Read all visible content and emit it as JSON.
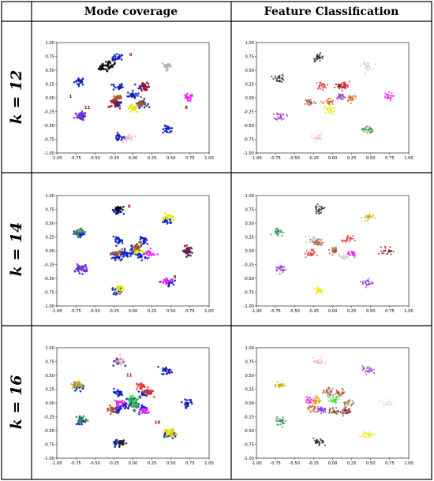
{
  "table": {
    "col_headers": [
      "Mode coverage",
      "Feature Classification"
    ],
    "rows": [
      {
        "label": "k = 12",
        "k": 12
      },
      {
        "label": "k = 14",
        "k": 14
      },
      {
        "label": "k = 16",
        "k": 16
      }
    ]
  },
  "chart_data": [
    {
      "type": "scatter",
      "title": "k = 12 — Mode coverage",
      "xlim": [
        -1.0,
        1.0
      ],
      "ylim": [
        -1.0,
        1.0
      ],
      "xticks": [
        "-1.00",
        "-0.75",
        "-0.50",
        "-0.25",
        "0.00",
        "0.25",
        "0.50",
        "0.75",
        "1.00"
      ],
      "yticks": [
        "1.00",
        "0.75",
        "0.50",
        "0.25",
        "0.00",
        "-0.25",
        "-0.50",
        "-0.75",
        "-1.00"
      ],
      "modes": [
        [
          -0.7,
          0.3
        ],
        [
          -0.2,
          0.72
        ],
        [
          0.45,
          0.58
        ],
        [
          -0.68,
          -0.33
        ],
        [
          -0.18,
          -0.72
        ],
        [
          0.46,
          -0.58
        ],
        [
          0.72,
          0.0
        ],
        [
          -0.2,
          0.2
        ],
        [
          -0.2,
          -0.1
        ],
        [
          0.15,
          0.2
        ],
        [
          0.12,
          -0.1
        ],
        [
          0.0,
          -0.2
        ],
        [
          0.0,
          0.05
        ],
        [
          -0.1,
          0.0
        ]
      ],
      "series": [
        {
          "color": "#0a1cc4",
          "points": [
            [
              -0.7,
              0.3
            ],
            [
              -0.2,
              0.72
            ],
            [
              -0.68,
              -0.33
            ],
            [
              -0.18,
              -0.72
            ],
            [
              0.46,
              -0.58
            ],
            [
              -0.2,
              0.2
            ],
            [
              -0.2,
              -0.1
            ],
            [
              0.15,
              0.2
            ],
            [
              0.12,
              -0.1
            ],
            [
              0.0,
              0.05
            ]
          ]
        },
        {
          "color": "#000000",
          "points": [
            [
              -0.4,
              0.55
            ],
            [
              -0.3,
              0.6
            ]
          ]
        },
        {
          "color": "#b0b0b0",
          "points": [
            [
              0.45,
              0.58
            ]
          ]
        },
        {
          "color": "#a01010",
          "points": [
            [
              0.15,
              0.2
            ],
            [
              -0.25,
              -0.1
            ]
          ]
        },
        {
          "color": "#a0522d",
          "points": [
            [
              -0.2,
              0.0
            ],
            [
              0.12,
              -0.1
            ]
          ]
        },
        {
          "color": "#f020f0",
          "points": [
            [
              0.72,
              0.0
            ]
          ]
        },
        {
          "color": "#e6e600",
          "points": [
            [
              0.0,
              -0.2
            ]
          ]
        },
        {
          "color": "#8a2be2",
          "points": [
            [
              -0.68,
              -0.33
            ]
          ]
        },
        {
          "color": "#ffb6c1",
          "points": [
            [
              -0.05,
              -0.72
            ]
          ]
        }
      ],
      "labels": [
        {
          "text": "1",
          "x": -0.82,
          "y": 0.0
        },
        {
          "text": "11",
          "x": -0.6,
          "y": -0.2
        },
        {
          "text": "0",
          "x": -0.03,
          "y": 0.76
        },
        {
          "text": "8",
          "x": 0.7,
          "y": -0.2
        }
      ]
    },
    {
      "type": "scatter",
      "title": "k = 12 — Feature Classification",
      "xlim": [
        -1.0,
        1.0
      ],
      "ylim": [
        -1.0,
        1.0
      ],
      "xticks": [
        "-1.00",
        "-0.75",
        "-0.50",
        "-0.25",
        "0.00",
        "0.25",
        "0.50",
        "0.75",
        "1.00"
      ],
      "yticks": [
        "1.00",
        "0.75",
        "0.50",
        "0.25",
        "0.00",
        "-0.25",
        "-0.50",
        "-0.75",
        "-1.00"
      ],
      "series": [
        {
          "color": "#202020",
          "points": [
            [
              -0.7,
              0.35
            ],
            [
              -0.18,
              0.73
            ]
          ]
        },
        {
          "color": "#c8c8c8",
          "points": [
            [
              0.45,
              0.58
            ]
          ]
        },
        {
          "color": "#e03030",
          "points": [
            [
              -0.15,
              0.22
            ],
            [
              0.15,
              0.22
            ]
          ]
        },
        {
          "color": "#8b1a1a",
          "points": [
            [
              0.1,
              0.2
            ]
          ]
        },
        {
          "color": "#a0522d",
          "points": [
            [
              -0.3,
              -0.08
            ]
          ]
        },
        {
          "color": "#d2691e",
          "points": [
            [
              0.25,
              0.0
            ],
            [
              -0.05,
              -0.08
            ]
          ]
        },
        {
          "color": "#9932cc",
          "points": [
            [
              -0.68,
              -0.33
            ],
            [
              0.1,
              0.02
            ]
          ]
        },
        {
          "color": "#f020f0",
          "points": [
            [
              0.72,
              0.02
            ]
          ]
        },
        {
          "color": "#e8e800",
          "points": [
            [
              -0.05,
              -0.22
            ]
          ]
        },
        {
          "color": "#228b22",
          "points": [
            [
              0.46,
              -0.58
            ]
          ]
        },
        {
          "color": "#ffc0cb",
          "points": [
            [
              -0.2,
              -0.72
            ]
          ]
        }
      ],
      "labels": []
    },
    {
      "type": "scatter",
      "title": "k = 14 — Mode coverage",
      "xlim": [
        -1.0,
        1.0
      ],
      "ylim": [
        -1.0,
        1.0
      ],
      "xticks": [
        "-1.00",
        "-0.75",
        "-0.50",
        "-0.25",
        "0.00",
        "0.25",
        "0.50",
        "0.75",
        "1.00"
      ],
      "yticks": [
        "1.00",
        "0.75",
        "0.50",
        "0.25",
        "0.00",
        "-0.25",
        "-0.50",
        "-0.75",
        "-1.00"
      ],
      "series": [
        {
          "color": "#0a1cc4",
          "points": [
            [
              -0.7,
              0.3
            ],
            [
              -0.2,
              0.7
            ],
            [
              0.45,
              0.55
            ],
            [
              -0.68,
              -0.33
            ],
            [
              -0.2,
              -0.72
            ],
            [
              0.46,
              -0.58
            ],
            [
              0.72,
              0.0
            ],
            [
              -0.2,
              0.18
            ],
            [
              -0.2,
              -0.12
            ],
            [
              0.15,
              0.18
            ],
            [
              0.1,
              -0.1
            ],
            [
              0.0,
              0.02
            ],
            [
              -0.1,
              -0.05
            ]
          ]
        },
        {
          "color": "#000000",
          "points": [
            [
              -0.18,
              0.75
            ]
          ]
        },
        {
          "color": "#2e8b57",
          "points": [
            [
              -0.72,
              0.35
            ]
          ]
        },
        {
          "color": "#e6e600",
          "points": [
            [
              0.46,
              0.6
            ],
            [
              0.05,
              0.0
            ],
            [
              -0.18,
              -0.68
            ]
          ]
        },
        {
          "color": "#8b1a1a",
          "points": [
            [
              0.72,
              0.0
            ]
          ]
        },
        {
          "color": "#a0522d",
          "points": [
            [
              -0.2,
              -0.05
            ],
            [
              0.05,
              0.05
            ]
          ]
        },
        {
          "color": "#f020f0",
          "points": [
            [
              0.22,
              -0.05
            ],
            [
              0.45,
              -0.55
            ]
          ]
        },
        {
          "color": "#8a2be2",
          "points": [
            [
              -0.68,
              -0.33
            ]
          ]
        }
      ],
      "labels": [
        {
          "text": "0",
          "x": -0.05,
          "y": 0.78
        },
        {
          "text": "8",
          "x": 0.55,
          "y": -0.5
        }
      ]
    },
    {
      "type": "scatter",
      "title": "k = 14 — Feature Classification",
      "xlim": [
        -1.0,
        1.0
      ],
      "ylim": [
        -1.0,
        1.0
      ],
      "xticks": [
        "-1.00",
        "-0.75",
        "-0.50",
        "-0.25",
        "0.00",
        "0.25",
        "0.50",
        "0.75",
        "1.00"
      ],
      "yticks": [
        "1.00",
        "0.75",
        "0.50",
        "0.25",
        "0.00",
        "-0.25",
        "-0.50",
        "-0.75",
        "-1.00"
      ],
      "series": [
        {
          "color": "#202020",
          "points": [
            [
              -0.18,
              0.75
            ]
          ]
        },
        {
          "color": "#c8c8c8",
          "points": [
            [
              -0.25,
              0.2
            ],
            [
              0.15,
              -0.1
            ]
          ]
        },
        {
          "color": "#2e8b57",
          "points": [
            [
              -0.72,
              0.35
            ]
          ]
        },
        {
          "color": "#c8b400",
          "points": [
            [
              0.46,
              0.6
            ]
          ]
        },
        {
          "color": "#e03030",
          "points": [
            [
              -0.3,
              -0.05
            ],
            [
              0.2,
              0.2
            ]
          ]
        },
        {
          "color": "#a0522d",
          "points": [
            [
              -0.2,
              0.15
            ],
            [
              0.02,
              0.0
            ]
          ]
        },
        {
          "color": "#8b1a1a",
          "points": [
            [
              0.72,
              0.0
            ]
          ]
        },
        {
          "color": "#9932cc",
          "points": [
            [
              -0.68,
              -0.33
            ],
            [
              0.46,
              -0.58
            ]
          ]
        },
        {
          "color": "#f020f0",
          "points": [
            [
              0.25,
              -0.05
            ]
          ]
        },
        {
          "color": "#e8e800",
          "points": [
            [
              -0.18,
              -0.72
            ]
          ]
        }
      ],
      "labels": []
    },
    {
      "type": "scatter",
      "title": "k = 16 — Mode coverage",
      "xlim": [
        -1.0,
        1.0
      ],
      "ylim": [
        -1.0,
        1.0
      ],
      "xticks": [
        "-1.00",
        "-0.75",
        "-0.50",
        "-0.25",
        "0.00",
        "0.25",
        "0.50",
        "0.75",
        "1.00"
      ],
      "yticks": [
        "1.00",
        "0.75",
        "0.50",
        "0.25",
        "0.00",
        "-0.25",
        "-0.50",
        "-0.75",
        "-1.00"
      ],
      "series": [
        {
          "color": "#0a1cc4",
          "points": [
            [
              -0.7,
              0.3
            ],
            [
              -0.2,
              0.75
            ],
            [
              0.45,
              0.58
            ],
            [
              -0.68,
              -0.33
            ],
            [
              -0.2,
              -0.72
            ],
            [
              0.46,
              -0.58
            ],
            [
              0.72,
              0.0
            ],
            [
              -0.2,
              0.18
            ],
            [
              -0.2,
              -0.12
            ],
            [
              0.15,
              0.18
            ],
            [
              0.12,
              -0.1
            ],
            [
              0.0,
              0.02
            ],
            [
              -0.1,
              -0.05
            ]
          ]
        },
        {
          "color": "#c8b400",
          "points": [
            [
              -0.72,
              0.33
            ],
            [
              0.5,
              -0.55
            ]
          ]
        },
        {
          "color": "#2e8b57",
          "points": [
            [
              -0.68,
              -0.3
            ],
            [
              0.0,
              -0.05
            ]
          ]
        },
        {
          "color": "#33dd33",
          "points": [
            [
              0.02,
              0.05
            ]
          ]
        },
        {
          "color": "#e03030",
          "points": [
            [
              0.1,
              0.3
            ],
            [
              0.2,
              0.2
            ]
          ]
        },
        {
          "color": "#f020f0",
          "points": [
            [
              -0.2,
              0.0
            ],
            [
              0.15,
              -0.15
            ]
          ]
        },
        {
          "color": "#a0522d",
          "points": [
            [
              -0.28,
              -0.12
            ]
          ]
        },
        {
          "color": "#202020",
          "points": [
            [
              -0.15,
              -0.72
            ]
          ]
        },
        {
          "color": "#ffb6c1",
          "points": [
            [
              -0.18,
              0.75
            ]
          ]
        },
        {
          "color": "#e6e600",
          "points": [
            [
              0.46,
              -0.55
            ]
          ]
        }
      ],
      "labels": [
        {
          "text": "11",
          "x": -0.05,
          "y": 0.48
        },
        {
          "text": "10",
          "x": 0.32,
          "y": -0.38
        },
        {
          "text": "1",
          "x": 0.5,
          "y": 0.55
        }
      ]
    },
    {
      "type": "scatter",
      "title": "k = 16 — Feature Classification",
      "xlim": [
        -1.0,
        1.0
      ],
      "ylim": [
        -1.0,
        1.0
      ],
      "xticks": [
        "-1.00",
        "-0.75",
        "-0.50",
        "-0.25",
        "0.00",
        "0.25",
        "0.50",
        "0.75",
        "1.00"
      ],
      "yticks": [
        "1.00",
        "0.75",
        "0.50",
        "0.25",
        "0.00",
        "-0.25",
        "-0.50",
        "-0.75",
        "-1.00"
      ],
      "series": [
        {
          "color": "#ffb6c1",
          "points": [
            [
              -0.18,
              0.75
            ]
          ]
        },
        {
          "color": "#9932cc",
          "points": [
            [
              0.46,
              0.6
            ]
          ]
        },
        {
          "color": "#c8b400",
          "points": [
            [
              -0.7,
              0.33
            ]
          ]
        },
        {
          "color": "#a0522d",
          "points": [
            [
              -0.05,
              0.2
            ],
            [
              0.1,
              0.18
            ]
          ]
        },
        {
          "color": "#f020f0",
          "points": [
            [
              -0.3,
              0.05
            ]
          ]
        },
        {
          "color": "#d2a000",
          "points": [
            [
              -0.2,
              0.05
            ]
          ]
        },
        {
          "color": "#33dd33",
          "points": [
            [
              0.02,
              0.05
            ]
          ]
        },
        {
          "color": "#8b7d3a",
          "points": [
            [
              0.2,
              0.0
            ]
          ]
        },
        {
          "color": "#e0e0e0",
          "points": [
            [
              0.72,
              0.0
            ]
          ]
        },
        {
          "color": "#d2691e",
          "points": [
            [
              -0.28,
              -0.1
            ]
          ]
        },
        {
          "color": "#8a2be2",
          "points": [
            [
              -0.15,
              -0.12
            ]
          ]
        },
        {
          "color": "#6b4423",
          "points": [
            [
              0.02,
              -0.15
            ]
          ]
        },
        {
          "color": "#8b1a1a",
          "points": [
            [
              0.18,
              -0.15
            ]
          ]
        },
        {
          "color": "#2e8b57",
          "points": [
            [
              -0.68,
              -0.33
            ]
          ]
        },
        {
          "color": "#202020",
          "points": [
            [
              -0.18,
              -0.72
            ]
          ]
        },
        {
          "color": "#e8e800",
          "points": [
            [
              0.46,
              -0.58
            ]
          ]
        }
      ],
      "labels": []
    }
  ]
}
